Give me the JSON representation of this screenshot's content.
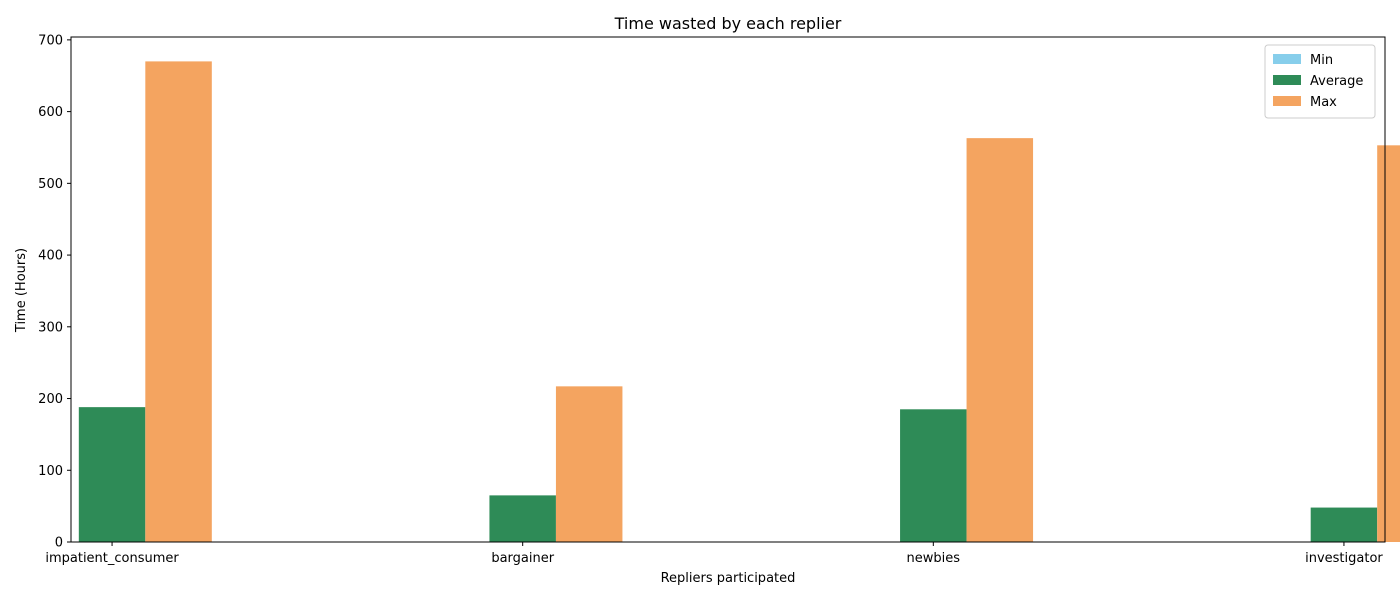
{
  "chart_data": {
    "type": "bar",
    "title": "Time wasted by each replier",
    "xlabel": "Repliers participated",
    "ylabel": "Time (Hours)",
    "categories": [
      "impatient_consumer",
      "bargainer",
      "newbies",
      "investigator"
    ],
    "series": [
      {
        "name": "Min",
        "color": "#87ceeb",
        "values": [
          0,
          0,
          0,
          0
        ]
      },
      {
        "name": "Average",
        "color": "#2e8b57",
        "values": [
          188,
          65,
          185,
          48
        ]
      },
      {
        "name": "Max",
        "color": "#f4a460",
        "values": [
          670,
          217,
          563,
          553
        ]
      }
    ],
    "ylim": [
      0,
      704
    ],
    "yticks": [
      0,
      100,
      200,
      300,
      400,
      500,
      600,
      700
    ],
    "grid": false,
    "legend_position": "top-right"
  }
}
